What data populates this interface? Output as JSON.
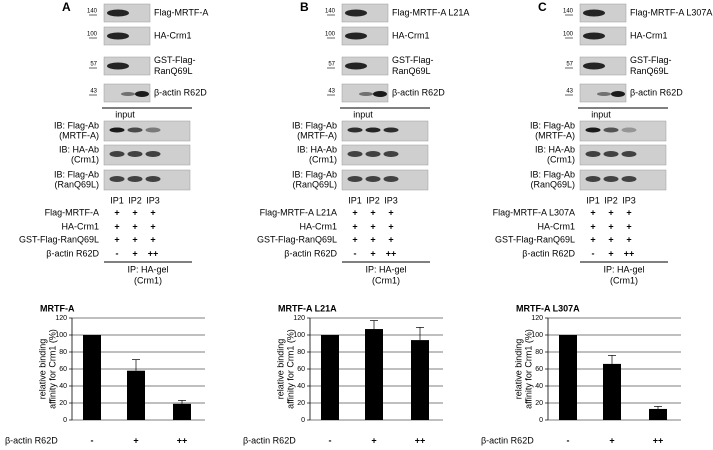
{
  "panels": [
    {
      "label": "A",
      "markers": [
        140,
        100,
        57,
        43
      ],
      "blots": [
        [
          "Flag-MRTF-A"
        ],
        [
          "HA-Crm1"
        ],
        [
          "GST-Flag-",
          "RanQ69L"
        ],
        [
          "β-actin R62D"
        ]
      ],
      "input": "input",
      "ib": [
        [
          "IB: Flag-Ab",
          "(MRTF-A)"
        ],
        [
          "IB: HA-Ab",
          "(Crm1)"
        ],
        [
          "IB: Flag-Ab",
          "(RanQ69L)"
        ]
      ],
      "lanes": [
        "IP1",
        "IP2",
        "IP3"
      ],
      "rows": [
        {
          "label": "Flag-MRTF-A",
          "marks": [
            "+",
            "+",
            "+"
          ]
        },
        {
          "label": "HA-Crm1",
          "marks": [
            "+",
            "+",
            "+"
          ]
        },
        {
          "label": "GST-Flag-RanQ69L",
          "marks": [
            "+",
            "+",
            "+"
          ]
        },
        {
          "label": "β-actin R62D",
          "marks": [
            "-",
            "+",
            "++"
          ]
        }
      ],
      "ip": [
        "IP: HA-gel",
        "(Crm1)"
      ]
    },
    {
      "label": "B",
      "markers": [
        140,
        100,
        57,
        43
      ],
      "blots": [
        [
          "Flag-MRTF-A L21A"
        ],
        [
          "HA-Crm1"
        ],
        [
          "GST-Flag-",
          "RanQ69L"
        ],
        [
          "β-actin R62D"
        ]
      ],
      "input": "input",
      "ib": [
        [
          "IB: Flag-Ab",
          "(MRTF-A)"
        ],
        [
          "IB: HA-Ab",
          "(Crm1)"
        ],
        [
          "IB: Flag-Ab",
          "(RanQ69L)"
        ]
      ],
      "lanes": [
        "IP1",
        "IP2",
        "IP3"
      ],
      "rows": [
        {
          "label": "Flag-MRTF-A L21A",
          "marks": [
            "+",
            "+",
            "+"
          ]
        },
        {
          "label": "HA-Crm1",
          "marks": [
            "+",
            "+",
            "+"
          ]
        },
        {
          "label": "GST-Flag-RanQ69L",
          "marks": [
            "+",
            "+",
            "+"
          ]
        },
        {
          "label": "β-actin R62D",
          "marks": [
            "-",
            "+",
            "++"
          ]
        }
      ],
      "ip": [
        "IP: HA-gel",
        "(Crm1)"
      ]
    },
    {
      "label": "C",
      "markers": [
        140,
        100,
        57,
        43
      ],
      "blots": [
        [
          "Flag-MRTF-A L307A"
        ],
        [
          "HA-Crm1"
        ],
        [
          "GST-Flag-",
          "RanQ69L"
        ],
        [
          "β-actin R62D"
        ]
      ],
      "input": "input",
      "ib": [
        [
          "IB: Flag-Ab",
          "(MRTF-A)"
        ],
        [
          "IB: HA-Ab",
          "(Crm1)"
        ],
        [
          "IB: Flag-Ab",
          "(RanQ69L)"
        ]
      ],
      "lanes": [
        "IP1",
        "IP2",
        "IP3"
      ],
      "rows": [
        {
          "label": "Flag-MRTF-A L307A",
          "marks": [
            "+",
            "+",
            "+"
          ]
        },
        {
          "label": "HA-Crm1",
          "marks": [
            "+",
            "+",
            "+"
          ]
        },
        {
          "label": "GST-Flag-RanQ69L",
          "marks": [
            "+",
            "+",
            "+"
          ]
        },
        {
          "label": "β-actin R62D",
          "marks": [
            "-",
            "+",
            "++"
          ]
        }
      ],
      "ip": [
        "IP: HA-gel",
        "(Crm1)"
      ]
    }
  ],
  "chart_data": [
    {
      "type": "bar",
      "title": "MRTF-A",
      "y_label": [
        "relative binding",
        "affinity for Crm1 (%)"
      ],
      "x_label": "β-actin R62D",
      "categories": [
        "-",
        "+",
        "++"
      ],
      "values": [
        100,
        58,
        19
      ],
      "errors": [
        0,
        13,
        4
      ],
      "color": "#000000",
      "ylim": [
        0,
        120
      ],
      "yticks": [
        0,
        20,
        40,
        60,
        80,
        100,
        120
      ],
      "grid": true
    },
    {
      "type": "bar",
      "title": "MRTF-A L21A",
      "y_label": [
        "relative binding",
        "affinity for Crm1 (%)"
      ],
      "x_label": "β-actin R62D",
      "categories": [
        "-",
        "+",
        "++"
      ],
      "values": [
        100,
        107,
        94
      ],
      "errors": [
        0,
        10,
        15
      ],
      "color": "#000000",
      "ylim": [
        0,
        120
      ],
      "yticks": [
        0,
        20,
        40,
        60,
        80,
        100,
        120
      ],
      "grid": true
    },
    {
      "type": "bar",
      "title": "MRTF-A L307A",
      "y_label": [
        "relative binding",
        "affinity for Crm1 (%)"
      ],
      "x_label": "β-actin R62D",
      "categories": [
        "-",
        "+",
        "++"
      ],
      "values": [
        100,
        66,
        13
      ],
      "errors": [
        0,
        10,
        3
      ],
      "color": "#000000",
      "ylim": [
        0,
        120
      ],
      "yticks": [
        0,
        20,
        40,
        60,
        80,
        100,
        120
      ],
      "grid": true
    }
  ]
}
